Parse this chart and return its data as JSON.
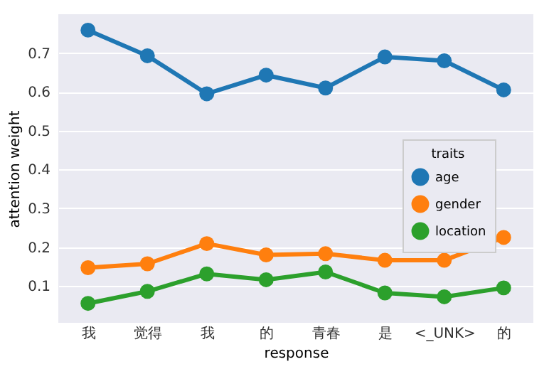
{
  "chart_data": {
    "type": "line",
    "xlabel": "response",
    "ylabel": "attention weight",
    "legend_title": "traits",
    "categories": [
      "我",
      "觉得",
      "我",
      "的",
      "青春",
      "是",
      "<_UNK>",
      "的"
    ],
    "series": [
      {
        "name": "age",
        "color": "#1f77b4",
        "values": [
          0.759,
          0.693,
          0.595,
          0.643,
          0.61,
          0.69,
          0.68,
          0.605
        ]
      },
      {
        "name": "gender",
        "color": "#ff7f0e",
        "values": [
          0.147,
          0.157,
          0.209,
          0.18,
          0.183,
          0.166,
          0.166,
          0.225
        ]
      },
      {
        "name": "location",
        "color": "#2ca02c",
        "values": [
          0.055,
          0.086,
          0.131,
          0.116,
          0.136,
          0.082,
          0.072,
          0.095
        ]
      }
    ],
    "ylim": [
      0.005,
      0.8
    ],
    "yticks": [
      0.1,
      0.2,
      0.3,
      0.4,
      0.5,
      0.6,
      0.7
    ],
    "grid": "y",
    "legend": "right",
    "marker": "circle",
    "line_style": "solid"
  }
}
